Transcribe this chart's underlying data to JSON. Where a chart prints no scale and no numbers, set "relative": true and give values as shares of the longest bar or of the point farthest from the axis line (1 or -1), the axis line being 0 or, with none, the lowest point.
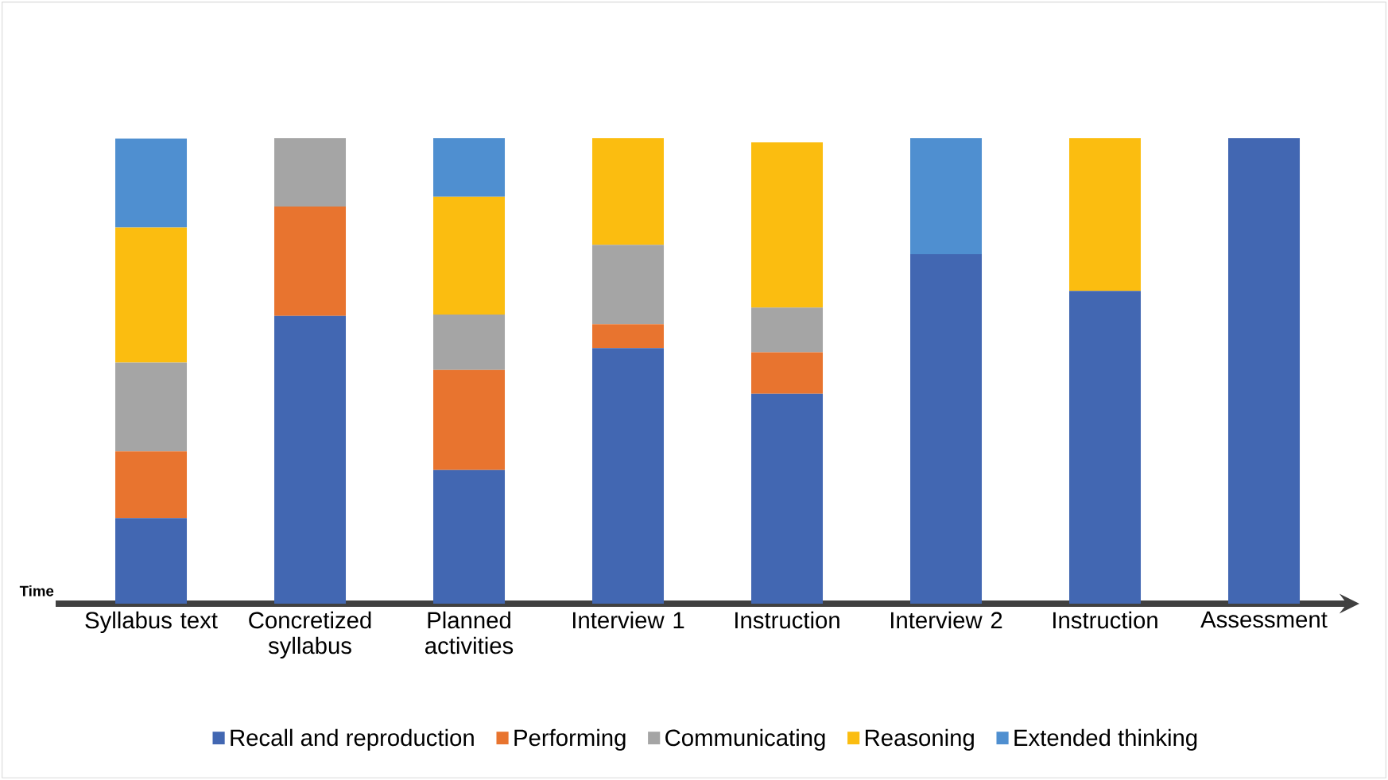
{
  "chart_data": {
    "type": "bar",
    "stacked": true,
    "relative": true,
    "categories": [
      "Syllabus text",
      "Concretized syllabus",
      "Planned activities",
      "Interview 1",
      "Instruction",
      "Interview 2",
      "Instruction",
      "Assessment"
    ],
    "series": [
      {
        "name": "Recall and reproduction",
        "color": "#4267b2",
        "values": [
          0.184,
          0.618,
          0.287,
          0.549,
          0.451,
          0.751,
          0.672,
          1.0
        ]
      },
      {
        "name": "Performing",
        "color": "#e8742f",
        "values": [
          0.143,
          0.235,
          0.215,
          0.051,
          0.089,
          null,
          null,
          null
        ]
      },
      {
        "name": "Communicating",
        "color": "#a5a5a5",
        "values": [
          0.191,
          0.147,
          0.119,
          0.171,
          0.096,
          null,
          null,
          null
        ]
      },
      {
        "name": "Reasoning",
        "color": "#fbbd10",
        "values": [
          0.29,
          null,
          0.253,
          0.229,
          0.355,
          null,
          0.328,
          null
        ]
      },
      {
        "name": "Extended thinking",
        "color": "#4f8fd0",
        "values": [
          0.191,
          null,
          0.126,
          null,
          null,
          0.249,
          null,
          null
        ]
      }
    ],
    "legend": "bottom",
    "annotations": [
      "Time"
    ]
  }
}
